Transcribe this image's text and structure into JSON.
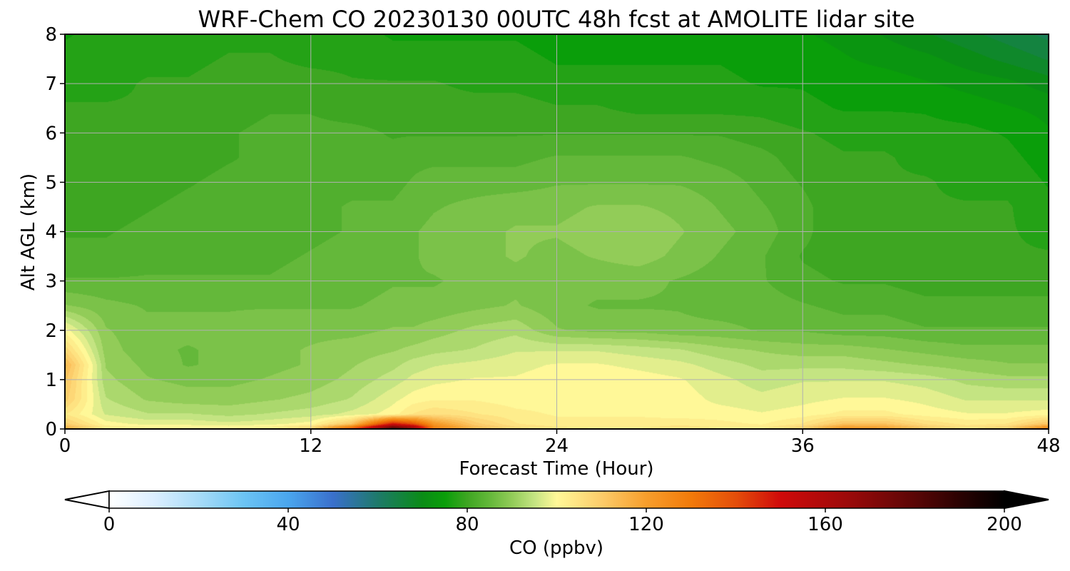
{
  "chart_data": {
    "type": "heatmap",
    "title": "WRF-Chem CO  20230130 00UTC 48h fcst at AMOLITE lidar site",
    "xlabel": "Forecast Time (Hour)",
    "ylabel": "Alt AGL (km)",
    "xlim": [
      0,
      48
    ],
    "ylim": [
      0,
      8
    ],
    "xticks": [
      0,
      12,
      24,
      36,
      48
    ],
    "yticks": [
      0,
      1,
      2,
      3,
      4,
      5,
      6,
      7,
      8
    ],
    "grid": true,
    "x": [
      0,
      2,
      4,
      6,
      8,
      10,
      12,
      14,
      16,
      17,
      18,
      20,
      22,
      24,
      26,
      28,
      30,
      32,
      34,
      36,
      38,
      40,
      42,
      44,
      46,
      48
    ],
    "y": [
      0,
      0.1,
      0.3,
      0.6,
      1,
      1.3,
      1.6,
      2,
      2.5,
      3,
      3.5,
      4,
      4.5,
      5,
      5.5,
      6,
      6.5,
      7,
      7.5,
      8
    ],
    "z": [
      [
        118,
        104,
        103,
        102,
        102,
        104,
        110,
        140,
        190,
        175,
        130,
        115,
        108,
        105,
        104,
        104,
        106,
        104,
        104,
        110,
        125,
        122,
        112,
        106,
        110,
        130
      ],
      [
        110,
        100,
        98,
        98,
        97,
        98,
        100,
        112,
        150,
        140,
        122,
        110,
        104,
        102,
        102,
        102,
        103,
        102,
        101,
        104,
        112,
        112,
        106,
        103,
        104,
        112
      ],
      [
        104,
        96,
        94,
        94,
        93,
        94,
        95,
        97,
        100,
        104,
        106,
        104,
        102,
        101,
        101,
        101,
        100,
        100,
        99,
        100,
        102,
        102,
        100,
        99,
        99,
        100
      ],
      [
        110,
        94,
        91,
        90,
        90,
        91,
        92,
        94,
        98,
        100,
        101,
        101,
        100,
        100,
        101,
        100,
        100,
        98,
        97,
        98,
        99,
        99,
        98,
        96,
        96,
        96
      ],
      [
        112,
        92,
        89,
        88,
        88,
        89,
        90,
        92,
        95,
        97,
        98,
        99,
        99,
        100,
        101,
        100,
        99,
        97,
        95,
        96,
        96,
        96,
        95,
        93,
        92,
        92
      ],
      [
        115,
        91,
        88,
        86,
        87,
        88,
        89,
        91,
        93,
        95,
        96,
        97,
        98,
        99,
        99,
        98,
        97,
        95,
        93,
        93,
        93,
        92,
        91,
        90,
        89,
        89
      ],
      [
        108,
        90,
        87,
        86,
        87,
        88,
        89,
        90,
        91,
        92,
        93,
        94,
        96,
        96,
        96,
        95,
        94,
        92,
        91,
        90,
        90,
        89,
        88,
        87,
        87,
        87
      ],
      [
        100,
        89,
        87,
        87,
        87,
        88,
        88,
        88,
        89,
        89,
        90,
        92,
        93,
        89,
        88,
        88,
        87,
        87,
        86,
        86,
        85,
        85,
        84,
        84,
        84,
        84
      ],
      [
        89,
        87,
        86,
        86,
        86,
        86,
        86,
        86,
        87,
        87,
        87,
        88,
        89,
        87,
        86,
        86,
        86,
        85,
        85,
        84,
        83,
        83,
        82,
        82,
        82,
        82
      ],
      [
        84,
        84,
        84,
        84,
        84,
        84,
        85,
        85,
        86,
        86,
        86,
        87,
        88,
        87,
        87,
        87,
        86,
        85,
        84,
        82,
        81,
        81,
        80,
        80,
        80,
        80
      ],
      [
        82,
        82,
        83,
        83,
        83,
        83,
        84,
        85,
        86,
        86,
        87,
        88,
        89,
        88,
        89,
        90,
        88,
        86,
        84,
        81,
        80,
        79,
        79,
        79,
        79,
        79
      ],
      [
        81,
        81,
        82,
        83,
        82,
        82,
        83,
        84,
        85,
        86,
        87,
        88,
        89,
        89,
        90,
        91,
        89,
        87,
        85,
        82,
        79,
        79,
        79,
        79,
        79,
        78
      ],
      [
        80,
        80,
        81,
        82,
        82,
        82,
        83,
        84,
        84,
        85,
        86,
        87,
        88,
        88,
        89,
        89,
        88,
        86,
        84,
        82,
        79,
        79,
        79,
        79,
        79,
        77
      ],
      [
        79,
        79,
        80,
        81,
        82,
        82,
        83,
        83,
        83,
        84,
        85,
        85,
        85,
        86,
        86,
        86,
        86,
        85,
        83,
        81,
        79,
        79,
        79,
        78,
        78,
        76
      ],
      [
        79,
        79,
        79,
        80,
        81,
        82,
        82,
        82,
        82,
        83,
        83,
        83,
        83,
        84,
        84,
        84,
        84,
        83,
        82,
        80,
        79,
        79,
        78,
        78,
        77,
        75
      ],
      [
        79,
        79,
        79,
        80,
        81,
        82,
        82,
        82,
        81,
        81,
        81,
        81,
        81,
        81,
        81,
        81,
        81,
        81,
        80,
        79,
        78,
        78,
        77,
        77,
        76,
        74
      ],
      [
        79,
        79,
        79,
        79,
        80,
        81,
        81,
        80,
        80,
        80,
        80,
        80,
        80,
        79,
        79,
        78,
        78,
        78,
        78,
        77,
        76,
        76,
        76,
        75,
        74,
        73
      ],
      [
        78,
        78,
        79,
        79,
        80,
        80,
        80,
        79,
        79,
        79,
        79,
        78,
        78,
        77,
        77,
        77,
        77,
        77,
        76,
        76,
        75,
        75,
        74,
        73,
        72,
        70
      ],
      [
        77,
        78,
        78,
        78,
        79,
        79,
        78,
        78,
        77,
        77,
        77,
        77,
        77,
        76,
        76,
        76,
        76,
        76,
        75,
        75,
        74,
        73,
        72,
        70,
        68,
        66
      ],
      [
        76,
        77,
        77,
        77,
        78,
        78,
        77,
        77,
        76,
        76,
        76,
        76,
        76,
        75,
        75,
        75,
        75,
        75,
        74,
        74,
        73,
        71,
        69,
        67,
        65,
        63
      ]
    ],
    "colorbar": {
      "label": "CO  (ppbv)",
      "min": 0,
      "max": 200,
      "ticks": [
        0,
        40,
        80,
        120,
        160,
        200
      ],
      "extend": "both",
      "colors": [
        [
          0,
          "#ffffff"
        ],
        [
          10,
          "#dcefff"
        ],
        [
          20,
          "#a8dcf8"
        ],
        [
          30,
          "#6cc4f4"
        ],
        [
          40,
          "#4aa6ee"
        ],
        [
          50,
          "#3a70cc"
        ],
        [
          60,
          "#1e7a6a"
        ],
        [
          70,
          "#0a8c16"
        ],
        [
          75,
          "#0a9e0a"
        ],
        [
          80,
          "#3ea622"
        ],
        [
          85,
          "#64b83a"
        ],
        [
          90,
          "#92cc58"
        ],
        [
          95,
          "#c4e482"
        ],
        [
          100,
          "#fff898"
        ],
        [
          110,
          "#fccc6a"
        ],
        [
          120,
          "#f79e2c"
        ],
        [
          130,
          "#f27a0a"
        ],
        [
          140,
          "#e44e0a"
        ],
        [
          150,
          "#cf0a0a"
        ],
        [
          165,
          "#9c0a0a"
        ],
        [
          180,
          "#5a0606"
        ],
        [
          190,
          "#2a0202"
        ],
        [
          200,
          "#000000"
        ]
      ]
    }
  }
}
